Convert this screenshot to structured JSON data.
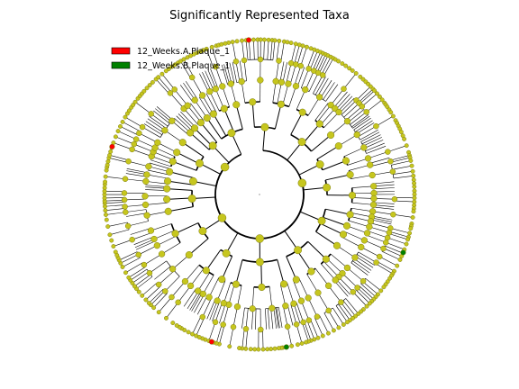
{
  "chart_data": {
    "type": "cladogram",
    "title": "Significantly Represented Taxa",
    "legend": {
      "placement": "top-left",
      "entries": [
        {
          "label": "12_Weeks.A.Plaque_1",
          "color": "#ff0000"
        },
        {
          "label": "12_Weeks.B.Plaque_1",
          "color": "#008000"
        }
      ]
    },
    "colors": {
      "node_fill": "#c6c61e",
      "node_stroke": "#7c7c10",
      "edge": "#000000",
      "enriched_a": "#ff0000",
      "enriched_b": "#008000"
    },
    "clades": [
      {
        "start_deg": -12,
        "end_deg": 160,
        "tips": 150,
        "top_children": 6,
        "depth": 6
      },
      {
        "start_deg": 160,
        "end_deg": 200,
        "tips": 32,
        "top_children": 1,
        "depth": 6
      },
      {
        "start_deg": 200,
        "end_deg": 275,
        "tips": 60,
        "top_children": 3,
        "depth": 6
      },
      {
        "start_deg": 275,
        "end_deg": 348,
        "tips": 55,
        "top_children": 4,
        "depth": 6
      }
    ],
    "highlighted_nodes": [
      {
        "group": "12_Weeks.A.Plaque_1",
        "angle_deg": 288
      },
      {
        "group": "12_Weeks.A.Plaque_1",
        "angle_deg": 356
      },
      {
        "group": "12_Weeks.A.Plaque_1",
        "angle_deg": 198
      },
      {
        "group": "12_Weeks.B.Plaque_1",
        "angle_deg": 170
      },
      {
        "group": "12_Weeks.B.Plaque_1",
        "angle_deg": 112
      }
    ]
  }
}
